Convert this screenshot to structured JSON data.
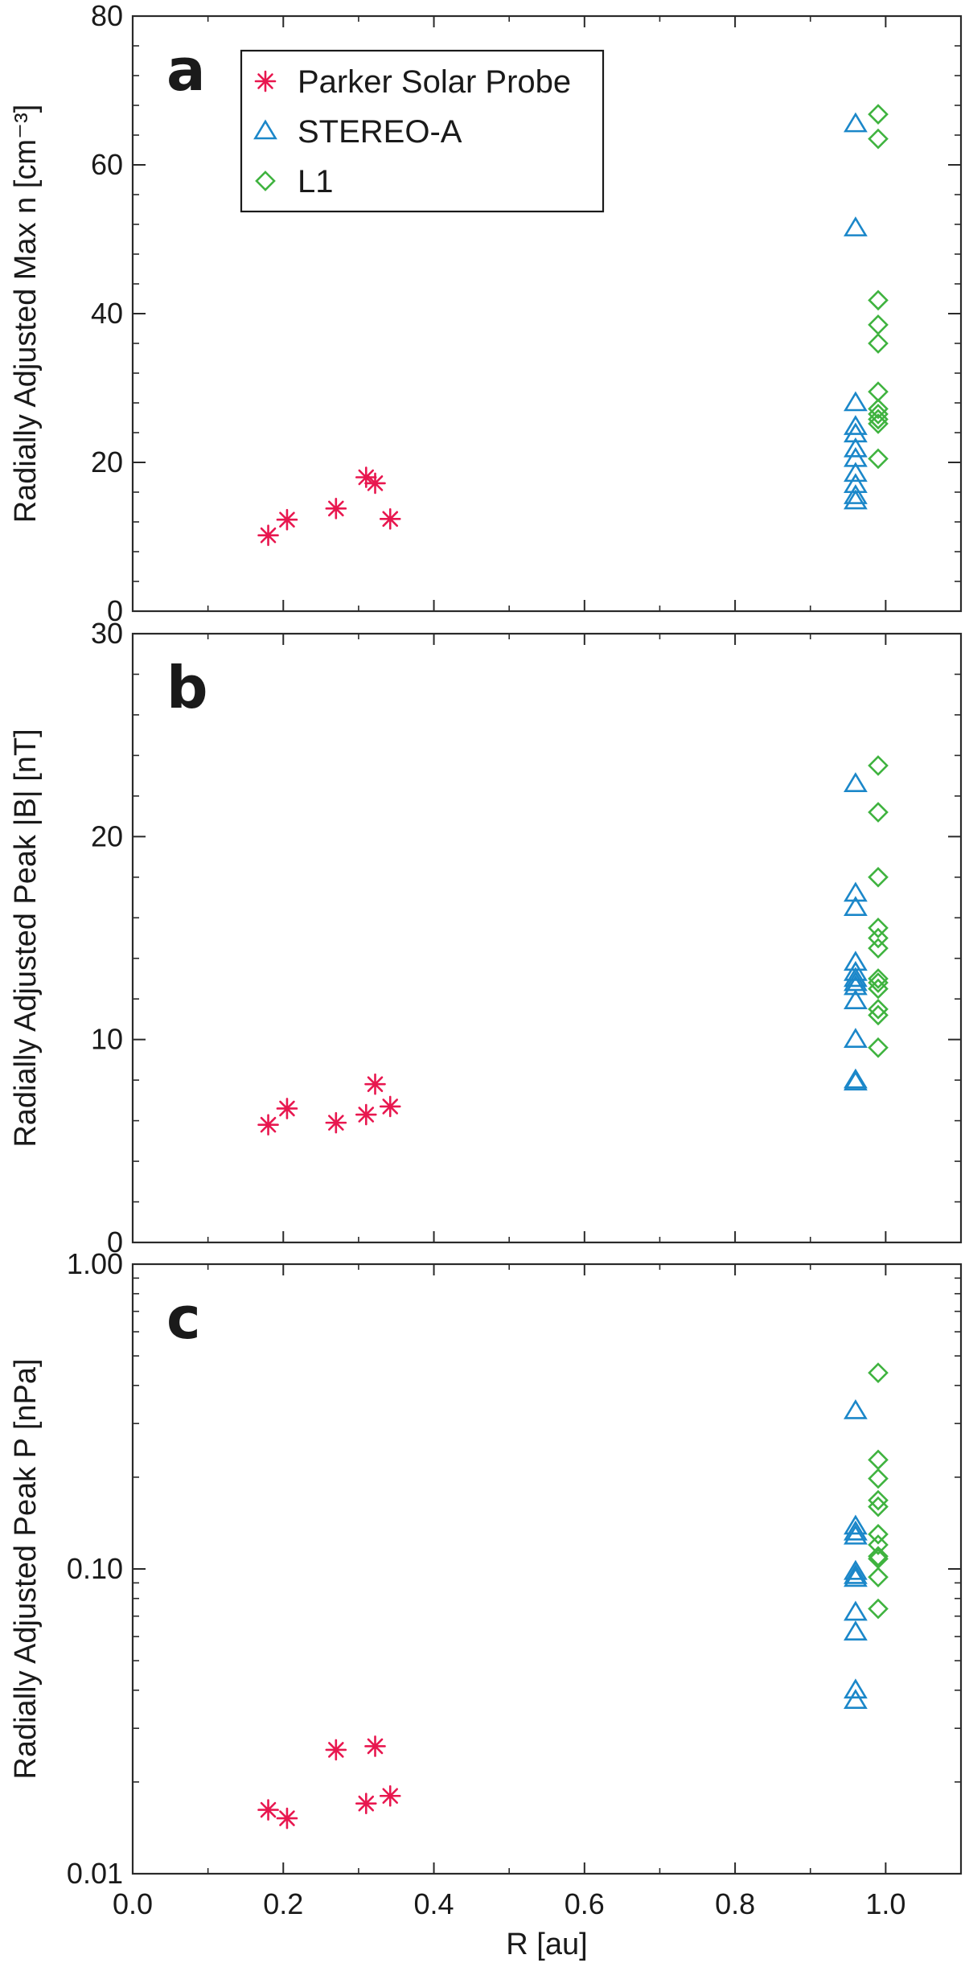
{
  "chart_data": [
    {
      "type": "scatter",
      "panel_label": "a",
      "ylabel": "Radially Adjusted Max n [cm⁻³]",
      "xlabel": "",
      "xlim": [
        0.0,
        1.1
      ],
      "ylim": [
        0,
        80
      ],
      "yscale": "linear",
      "yticks": [
        0,
        20,
        40,
        60,
        80
      ],
      "yticklabels": [
        "0",
        "20",
        "40",
        "60",
        "80"
      ],
      "legend": {
        "placement": "top-left",
        "entries": [
          {
            "label": "Parker Solar Probe",
            "marker": "asterisk",
            "color": "#e8174f"
          },
          {
            "label": "STEREO-A",
            "marker": "triangle",
            "color": "#1b87c9"
          },
          {
            "label": "L1",
            "marker": "diamond",
            "color": "#3fb33f"
          }
        ]
      },
      "series": [
        {
          "name": "Parker Solar Probe",
          "marker": "asterisk",
          "color": "#e8174f",
          "x": [
            0.18,
            0.205,
            0.27,
            0.31,
            0.322,
            0.342
          ],
          "y": [
            10.2,
            12.3,
            13.8,
            18.0,
            17.2,
            12.4
          ]
        },
        {
          "name": "STEREO-A",
          "marker": "triangle",
          "color": "#1b87c9",
          "x": [
            0.96,
            0.96,
            0.96,
            0.96,
            0.96,
            0.96,
            0.96,
            0.96,
            0.96,
            0.96,
            0.96
          ],
          "y": [
            65.5,
            51.5,
            28.0,
            24.8,
            23.8,
            21.8,
            20.5,
            18.5,
            17.0,
            15.5,
            14.8
          ]
        },
        {
          "name": "L1",
          "marker": "diamond",
          "color": "#3fb33f",
          "x": [
            0.99,
            0.99,
            0.99,
            0.99,
            0.99,
            0.99,
            0.99,
            0.99,
            0.99,
            0.99,
            0.99
          ],
          "y": [
            66.8,
            63.5,
            41.8,
            38.5,
            36.0,
            29.5,
            27.2,
            26.5,
            25.8,
            25.2,
            20.5
          ]
        }
      ]
    },
    {
      "type": "scatter",
      "panel_label": "b",
      "ylabel": "Radially Adjusted Peak |B| [nT]",
      "xlabel": "",
      "xlim": [
        0.0,
        1.1
      ],
      "ylim": [
        0,
        30
      ],
      "yscale": "linear",
      "yticks": [
        0,
        10,
        20,
        30
      ],
      "yticklabels": [
        "0",
        "10",
        "20",
        "30"
      ],
      "series": [
        {
          "name": "Parker Solar Probe",
          "marker": "asterisk",
          "color": "#e8174f",
          "x": [
            0.18,
            0.205,
            0.27,
            0.31,
            0.322,
            0.342
          ],
          "y": [
            5.8,
            6.6,
            5.9,
            6.3,
            7.8,
            6.7
          ]
        },
        {
          "name": "STEREO-A",
          "marker": "triangle",
          "color": "#1b87c9",
          "x": [
            0.96,
            0.96,
            0.96,
            0.96,
            0.96,
            0.96,
            0.96,
            0.96,
            0.96,
            0.96,
            0.96,
            0.96
          ],
          "y": [
            22.6,
            17.2,
            16.5,
            13.8,
            13.3,
            12.8,
            12.6,
            11.9,
            10.0,
            8.0,
            7.9,
            13.0
          ]
        },
        {
          "name": "L1",
          "marker": "diamond",
          "color": "#3fb33f",
          "x": [
            0.99,
            0.99,
            0.99,
            0.99,
            0.99,
            0.99,
            0.99,
            0.99,
            0.99,
            0.99,
            0.99,
            0.99
          ],
          "y": [
            23.5,
            21.2,
            18.0,
            15.5,
            15.0,
            14.5,
            13.0,
            12.8,
            12.5,
            11.5,
            11.2,
            9.6
          ]
        }
      ]
    },
    {
      "type": "scatter",
      "panel_label": "c",
      "ylabel": "Radially Adjusted Peak P [nPa]",
      "xlabel": "R [au]",
      "xlim": [
        0.0,
        1.1
      ],
      "ylim": [
        0.01,
        1.0
      ],
      "yscale": "log",
      "yticks": [
        0.01,
        0.1,
        1.0
      ],
      "yticklabels": [
        "0.01",
        "0.10",
        "1.00"
      ],
      "xticks": [
        0.0,
        0.2,
        0.4,
        0.6,
        0.8,
        1.0
      ],
      "xticklabels": [
        "0.0",
        "0.2",
        "0.4",
        "0.6",
        "0.8",
        "1.0"
      ],
      "series": [
        {
          "name": "Parker Solar Probe",
          "marker": "asterisk",
          "color": "#e8174f",
          "x": [
            0.18,
            0.205,
            0.27,
            0.31,
            0.322,
            0.342
          ],
          "y": [
            0.0162,
            0.0152,
            0.0255,
            0.017,
            0.0262,
            0.018
          ]
        },
        {
          "name": "STEREO-A",
          "marker": "triangle",
          "color": "#1b87c9",
          "x": [
            0.96,
            0.96,
            0.96,
            0.96,
            0.96,
            0.96,
            0.96,
            0.96,
            0.96,
            0.96,
            0.96
          ],
          "y": [
            0.33,
            0.138,
            0.132,
            0.128,
            0.098,
            0.095,
            0.093,
            0.072,
            0.062,
            0.04,
            0.037
          ]
        },
        {
          "name": "L1",
          "marker": "diamond",
          "color": "#3fb33f",
          "x": [
            0.99,
            0.99,
            0.99,
            0.99,
            0.99,
            0.99,
            0.99,
            0.99,
            0.99,
            0.99,
            0.99
          ],
          "y": [
            0.44,
            0.228,
            0.198,
            0.168,
            0.16,
            0.13,
            0.12,
            0.11,
            0.108,
            0.094,
            0.074
          ]
        }
      ]
    }
  ]
}
